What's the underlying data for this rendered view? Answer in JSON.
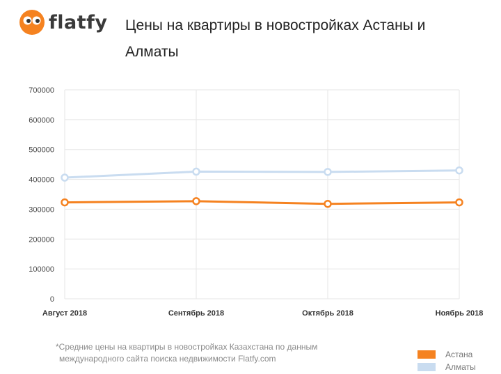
{
  "brand": {
    "name": "flatfy"
  },
  "title": "Цены на квартиры в новостройках Астаны и Алматы",
  "footnote": {
    "line1": "*Средние цены на квартиры в новостройках Казахстана по данным",
    "line2": "международного сайта поиска недвижимости Flatfy.com"
  },
  "colors": {
    "astana": "#f58220",
    "almaty": "#c9dcf0",
    "grid": "#e6e6e6",
    "logo": "#f58220"
  },
  "chart_data": {
    "type": "line",
    "categories": [
      "Август 2018",
      "Сентябрь 2018",
      "Октябрь 2018",
      "Ноябрь 2018"
    ],
    "series": [
      {
        "name": "Астана",
        "values": [
          323000,
          327000,
          318000,
          323000
        ]
      },
      {
        "name": "Алматы",
        "values": [
          406000,
          426000,
          425000,
          430000
        ]
      }
    ],
    "ylim": [
      0,
      700000
    ],
    "yticks": [
      "0",
      "100000",
      "200000",
      "300000",
      "400000",
      "500000",
      "600000",
      "700000"
    ],
    "grid": true,
    "legend": "bottom-right"
  }
}
